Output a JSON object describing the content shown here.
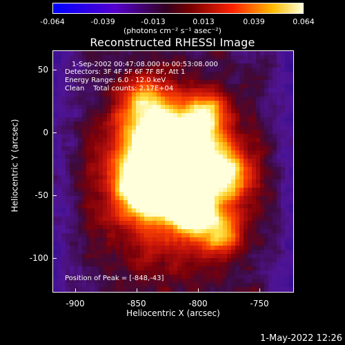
{
  "colorbar": {
    "ticks": [
      "-0.064",
      "-0.039",
      "-0.013",
      "0.013",
      "0.039",
      "0.064"
    ],
    "units": "(photons cm⁻² s⁻¹ asec⁻²)"
  },
  "title": "Reconstructed RHESSI Image",
  "annotations": {
    "time_range": "1-Sep-2002 00:47:08.000 to 00:53:08.000",
    "detectors": "Detectors: 3F 4F 5F 6F 7F 8F, Att 1",
    "energy_range": "Energy Range: 6.0 - 12.0 keV",
    "clean_counts": "Clean    Total counts: 2.17E+04",
    "peak_position": "Position of Peak = [-848,-43]"
  },
  "axes": {
    "xlabel": "Heliocentric X (arcsec)",
    "ylabel": "Heliocentric Y (arcsec)",
    "xticks": [
      "-900",
      "-850",
      "-800",
      "-750"
    ],
    "yticks": [
      "50",
      "0",
      "-50",
      "-100"
    ]
  },
  "timestamp": "1-May-2022 12:26",
  "colors": {
    "low": "#2a0a8a",
    "mid": "#c0100a",
    "high": "#ffffe0"
  }
}
